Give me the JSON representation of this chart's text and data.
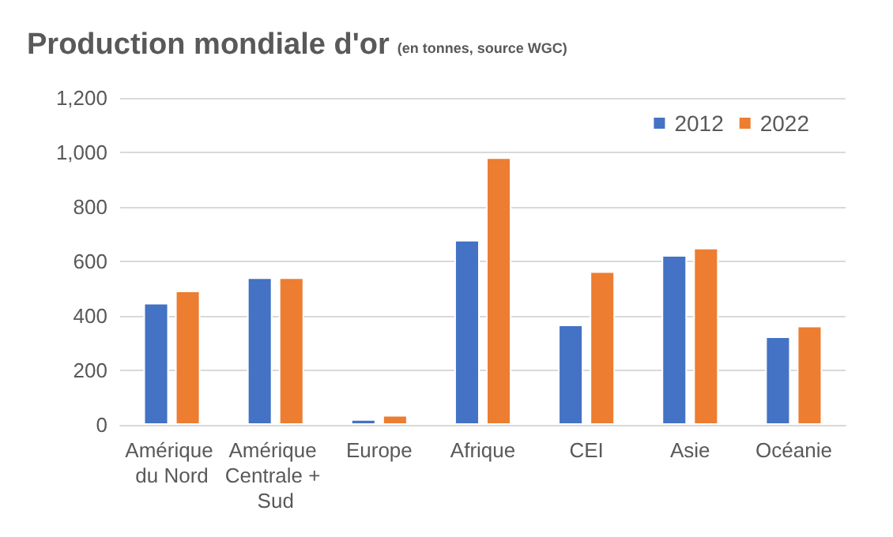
{
  "chart_data": {
    "type": "bar",
    "title": "Production mondiale d'or",
    "subtitle": "(en tonnes, source WGC)",
    "categories": [
      "Amérique du Nord",
      "Amérique Centrale + Sud",
      "Europe",
      "Afrique",
      "CEI",
      "Asie",
      "Océanie"
    ],
    "series": [
      {
        "name": "2012",
        "color": "#4472c4",
        "values": [
          448,
          541,
          21,
          679,
          368,
          623,
          325
        ]
      },
      {
        "name": "2022",
        "color": "#ed7d31",
        "values": [
          493,
          541,
          36,
          982,
          564,
          650,
          364
        ]
      }
    ],
    "ylim": [
      0,
      1200
    ],
    "yticks": [
      0,
      200,
      400,
      600,
      800,
      {
        "value": 1000,
        "label": "1,000"
      },
      {
        "value": 1200,
        "label": "1,200"
      }
    ],
    "grid": "y",
    "legend": "top right"
  }
}
